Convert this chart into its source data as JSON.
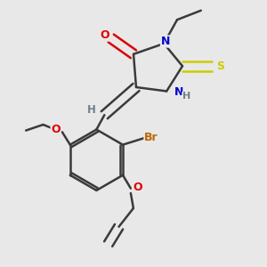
{
  "bg_color": "#e8e8e8",
  "bond_color": "#3a3a3a",
  "atom_colors": {
    "O": "#dd0000",
    "N": "#0000cc",
    "S": "#cccc00",
    "Br": "#bb6600",
    "H": "#708090",
    "C": "#3a3a3a"
  },
  "figsize": [
    3.0,
    3.0
  ],
  "dpi": 100
}
